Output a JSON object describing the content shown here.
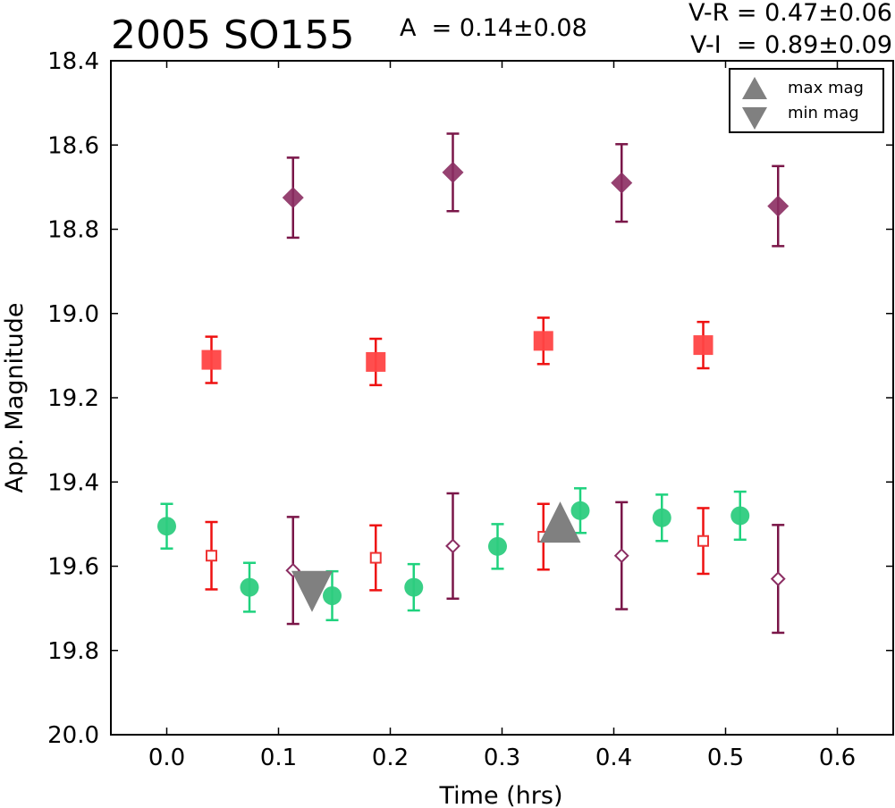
{
  "header": {
    "object": "2005 SO155",
    "amplitude": "A  = 0.14±0.08",
    "vr": "V-R = 0.47±0.06",
    "vi": "V-I  = 0.89±0.09"
  },
  "chart_data": {
    "type": "scatter",
    "xlabel": "Time (hrs)",
    "ylabel": "App. Magnitude",
    "xlim": [
      -0.05,
      0.65
    ],
    "ylim": [
      20.0,
      18.4
    ],
    "y_inverted": true,
    "xticks": [
      "0.0",
      "0.1",
      "0.2",
      "0.3",
      "0.4",
      "0.5",
      "0.6"
    ],
    "yticks": [
      "18.4",
      "18.6",
      "18.8",
      "19.0",
      "19.2",
      "19.4",
      "19.6",
      "19.8",
      "20.0"
    ],
    "grid": false,
    "legend": {
      "placement": "top-right",
      "entries": [
        {
          "label": "max mag",
          "marker": "triangle-up",
          "color": "#808080"
        },
        {
          "label": "min mag",
          "marker": "triangle-down",
          "color": "#808080"
        }
      ]
    },
    "series": [
      {
        "marker": "diamond-filled",
        "color": "#8b2d62",
        "errcolor": "#7a1648",
        "points": [
          [
            0.113,
            18.725,
            0.095
          ],
          [
            0.256,
            18.665,
            0.092
          ],
          [
            0.407,
            18.69,
            0.092
          ],
          [
            0.547,
            18.745,
            0.095
          ]
        ]
      },
      {
        "marker": "square-filled",
        "color": "#ff4444",
        "errcolor": "#ee1111",
        "points": [
          [
            0.04,
            19.11,
            0.055
          ],
          [
            0.187,
            19.115,
            0.055
          ],
          [
            0.337,
            19.065,
            0.055
          ],
          [
            0.48,
            19.075,
            0.055
          ]
        ]
      },
      {
        "marker": "circle-filled",
        "color": "#2ecc80",
        "errcolor": "#1fd27e",
        "points": [
          [
            0.0,
            19.505,
            0.053
          ],
          [
            0.074,
            19.65,
            0.058
          ],
          [
            0.148,
            19.67,
            0.058
          ],
          [
            0.221,
            19.65,
            0.055
          ],
          [
            0.296,
            19.553,
            0.053
          ],
          [
            0.37,
            19.468,
            0.053
          ],
          [
            0.443,
            19.485,
            0.055
          ],
          [
            0.513,
            19.48,
            0.057
          ]
        ]
      },
      {
        "marker": "square-open",
        "color": "#ee3333",
        "errcolor": "#ee1111",
        "points": [
          [
            0.04,
            19.575,
            0.08
          ],
          [
            0.187,
            19.58,
            0.077
          ],
          [
            0.337,
            19.53,
            0.078
          ],
          [
            0.48,
            19.54,
            0.078
          ]
        ]
      },
      {
        "marker": "diamond-open",
        "color": "#8b2d62",
        "errcolor": "#7a1648",
        "points": [
          [
            0.113,
            19.61,
            0.127
          ],
          [
            0.256,
            19.552,
            0.125
          ],
          [
            0.407,
            19.575,
            0.127
          ],
          [
            0.547,
            19.63,
            0.128
          ]
        ]
      }
    ],
    "annotations": [
      {
        "label": "max mag",
        "marker": "triangle-up",
        "x": 0.352,
        "y": 19.51
      },
      {
        "label": "min mag",
        "marker": "triangle-down",
        "x": 0.13,
        "y": 19.645
      }
    ]
  }
}
